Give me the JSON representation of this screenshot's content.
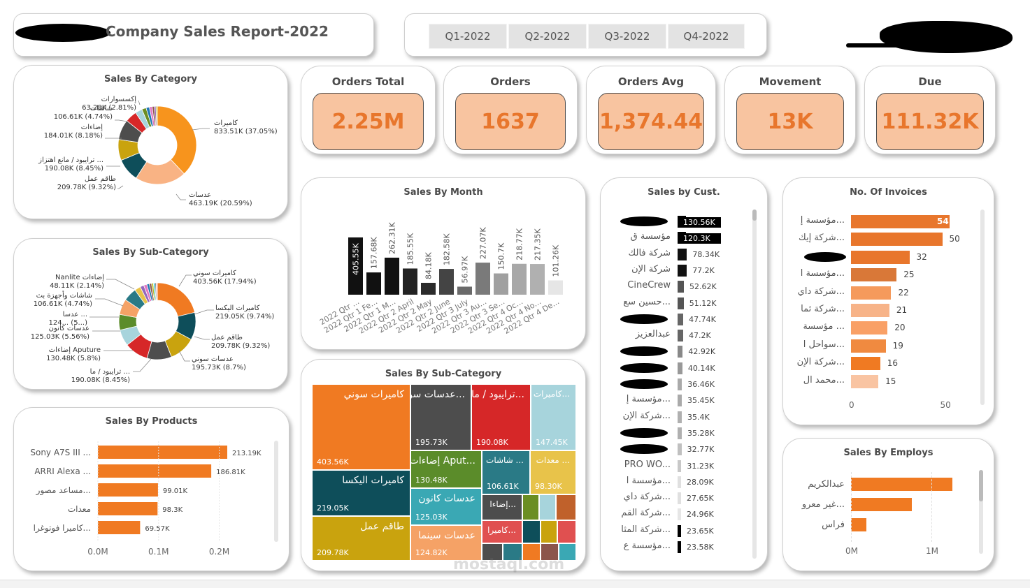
{
  "header": {
    "title": "Company Sales Report-2022",
    "quarters": [
      "Q1-2022",
      "Q2-2022",
      "Q3-2022",
      "Q4-2022"
    ]
  },
  "kpis": [
    {
      "title": "Orders Total",
      "value": "2.25M"
    },
    {
      "title": "Orders",
      "value": "1637"
    },
    {
      "title": "Orders Avg",
      "value": "1,374.44"
    },
    {
      "title": "Movement",
      "value": "13K"
    },
    {
      "title": "Due",
      "value": "111.32K"
    }
  ],
  "category_donut": {
    "title": "Sales By Category",
    "slices": [
      {
        "label": "كاميرات",
        "value": 833.51,
        "pct": "37.05%",
        "text": "833.51K (37.05%)",
        "color": "#f7941d"
      },
      {
        "label": "عدسات",
        "value": 463.19,
        "pct": "20.59%",
        "text": "463.19K (20.59%)",
        "color": "#f9b384"
      },
      {
        "label": "طاقم عمل",
        "value": 209.78,
        "pct": "9.32%",
        "text": "209.78K (9.32%)",
        "color": "#0e4e5a"
      },
      {
        "label": "ترايبود / مانع اهتزاز ...",
        "value": 190.08,
        "pct": "8.45%",
        "text": "190.08K (8.45%)",
        "color": "#c9a30e"
      },
      {
        "label": "إضاءات",
        "value": 184.01,
        "pct": "8.18%",
        "text": "184.01K (8.18%)",
        "color": "#4d4d4d"
      },
      {
        "label": "شاشات",
        "value": 106.61,
        "pct": "4.74%",
        "text": "106.61K (4.74%)",
        "color": "#d62728"
      },
      {
        "label": "إكسسوارات",
        "value": 63.28,
        "pct": "2.81%",
        "text": "63.28K (2.81%)",
        "color": "#a7d4dc"
      },
      {
        "label": "",
        "value": 40,
        "pct": "",
        "text": "",
        "color": "#6b8e23"
      },
      {
        "label": "",
        "value": 30,
        "pct": "",
        "text": "",
        "color": "#1f77b4"
      },
      {
        "label": "",
        "value": 25,
        "pct": "",
        "text": "",
        "color": "#e377c2"
      },
      {
        "label": "",
        "value": 20,
        "pct": "",
        "text": "",
        "color": "#8c564b"
      },
      {
        "label": "",
        "value": 15,
        "pct": "",
        "text": "",
        "color": "#9467bd"
      },
      {
        "label": "",
        "value": 12,
        "pct": "",
        "text": "",
        "color": "#bcbd22"
      }
    ]
  },
  "subcategory_donut": {
    "title": "Sales By Sub-Category",
    "slices": [
      {
        "label": "كاميرات سوني",
        "text": "403.56K (17.94%)",
        "value": 403.56,
        "color": "#f07a22"
      },
      {
        "label": "كاميرات اليكسا",
        "text": "219.05K (9.74%)",
        "value": 219.05,
        "color": "#0e4e5a"
      },
      {
        "label": "طاقم عمل",
        "text": "209.78K (9.32%)",
        "value": 209.78,
        "color": "#c9a30e"
      },
      {
        "label": "عدسات سوني",
        "text": "195.73K (8.7%)",
        "value": 195.73,
        "color": "#4d4d4d"
      },
      {
        "label": "ترايبود / ما ...",
        "text": "190.08K (8.45%)",
        "value": 190.08,
        "color": "#d62728"
      },
      {
        "label": "إضاءات Aputure",
        "text": "130.48K (5.8%)",
        "value": 130.48,
        "color": "#a7d4dc"
      },
      {
        "label": "عدسات كانون",
        "text": "125.03K (5.56%)",
        "value": 125.03,
        "color": "#5b8c2a"
      },
      {
        "label": "عدسا ...",
        "text": "124... (5...)",
        "value": 124.82,
        "color": "#f5a266"
      },
      {
        "label": "شاشات وأجهزة بث",
        "text": "106.61K (4.74%)",
        "value": 106.61,
        "color": "#2a7a86"
      },
      {
        "label": "Nanlite إضاءات",
        "text": "48.11K (2.14%)",
        "value": 48.11,
        "color": "#e8c34a"
      },
      {
        "label": "",
        "text": "",
        "value": 30,
        "color": "#9467bd"
      },
      {
        "label": "",
        "text": "",
        "value": 25,
        "color": "#e377c2"
      },
      {
        "label": "",
        "text": "",
        "value": 20,
        "color": "#1f77b4"
      },
      {
        "label": "",
        "text": "",
        "value": 18,
        "color": "#8c564b"
      },
      {
        "label": "",
        "text": "",
        "value": 15,
        "color": "#bcbd22"
      },
      {
        "label": "",
        "text": "",
        "value": 12,
        "color": "#17becf"
      },
      {
        "label": "",
        "text": "",
        "value": 10,
        "color": "#7f7f7f"
      },
      {
        "label": "",
        "text": "",
        "value": 9,
        "color": "#ff9896"
      }
    ]
  },
  "products_bar": {
    "title": "Sales By Products",
    "rows": [
      {
        "label": "Sony A7S III ...",
        "value": 213.19,
        "text": "213.19K"
      },
      {
        "label": "ARRI Alexa ...",
        "value": 186.81,
        "text": "186.81K"
      },
      {
        "label": "مساعد مصور...",
        "value": 99.01,
        "text": "99.01K"
      },
      {
        "label": "معدات",
        "value": 98.3,
        "text": "98.3K"
      },
      {
        "label": "كاميرا فوتوغرا...",
        "value": 69.57,
        "text": "69.57K"
      }
    ],
    "xticks": [
      "0.0M",
      "0.1M",
      "0.2M"
    ],
    "color": "#f07a22"
  },
  "month_chart": {
    "type": "bar",
    "title": "Sales By Month",
    "categories": [
      "2022 Qtr 1 January",
      "2022 Qtr 1 February",
      "2022 Qtr 1 March",
      "2022 Qtr 2 April",
      "2022 Qtr 2 May",
      "2022 Qtr 2 June",
      "2022 Qtr 3 July",
      "2022 Qtr 3 August",
      "2022 Qtr 3 September",
      "2022 Qtr 4 October",
      "2022 Qtr 4 November",
      "2022 Qtr 4 December"
    ],
    "short_labels": [
      "2022 Qtr ...",
      "2022 Qtr 1 Fe...",
      "2022 Qtr 1 M...",
      "2022 Qtr 2 April",
      "2022 Qtr 2 May",
      "2022 Qtr 2 June",
      "2022 Qtr 3 July",
      "2022 Qtr 3 Au...",
      "2022 Qtr 3 Se...",
      "2022 Qtr 4 Oc...",
      "2022 Qtr 4 No...",
      "2022 Qtr 4 De..."
    ],
    "values": [
      405.55,
      157.68,
      262.31,
      185.55,
      84.18,
      182.58,
      56.97,
      227.07,
      150.7,
      218.77,
      217.35,
      101.26
    ],
    "labels": [
      "405.55K",
      "157.68K",
      "262.31K",
      "185.55K",
      "84.18K",
      "182.58K",
      "56.97K",
      "227.07K",
      "150.7K",
      "218.77K",
      "217.35K",
      "101.26K"
    ],
    "colors": [
      "#111111",
      "#111111",
      "#111111",
      "#222222",
      "#2b2b2b",
      "#444444",
      "#6a6a6a",
      "#7a7a7a",
      "#a0a0a0",
      "#a8a8a8",
      "#b0b0b0",
      "#e6e6e6"
    ]
  },
  "treemap": {
    "title": "Sales By Sub-Category",
    "tiles": [
      {
        "label": "كاميرات سوني",
        "value": "403.56K",
        "color": "#f07a22"
      },
      {
        "label": "كاميرات اليكسا",
        "value": "219.05K",
        "color": "#0e4e5a"
      },
      {
        "label": "طاقم عمل",
        "value": "209.78K",
        "color": "#c9a30e"
      },
      {
        "label": "عدسات سو...",
        "value": "195.73K",
        "color": "#4d4d4d"
      },
      {
        "label": "ترايبود / ما...",
        "value": "190.08K",
        "color": "#d62728"
      },
      {
        "label": "كاميرات...",
        "value": "147.45K",
        "color": "#a7d4dc"
      },
      {
        "label": "إضاءات Aput...",
        "value": "130.48K",
        "color": "#5b8c2a"
      },
      {
        "label": "شاشات ...",
        "value": "106.61K",
        "color": "#2a7a86"
      },
      {
        "label": "معدات ...",
        "value": "98.30K",
        "color": "#e8c34a"
      },
      {
        "label": "عدسات كانون",
        "value": "125.03K",
        "color": "#3aa8b4"
      },
      {
        "label": "إضاءا...",
        "value": "",
        "color": "#4d4d4d"
      },
      {
        "label": "عدسات سينما",
        "value": "124.82K",
        "color": "#f5a266"
      },
      {
        "label": "كاميرا...",
        "value": "",
        "color": "#e05050"
      }
    ]
  },
  "customers": {
    "title": "Sales by Cust.",
    "rows": [
      {
        "label": "",
        "value": 130.56,
        "text": "130.56K",
        "color": "#000000",
        "redacted": true
      },
      {
        "label": "مؤسسة ق",
        "value": 120.3,
        "text": "120.3K",
        "color": "#000000"
      },
      {
        "label": "شركة فالك",
        "value": 78.34,
        "text": "78.34K",
        "color": "#111111"
      },
      {
        "label": "شركة الإن",
        "value": 77.2,
        "text": "77.2K",
        "color": "#111111"
      },
      {
        "label": "CineCrew",
        "value": 52.62,
        "text": "52.62K",
        "color": "#555555"
      },
      {
        "label": "حسين سع...",
        "value": 51.12,
        "text": "51.12K",
        "color": "#555555"
      },
      {
        "label": "",
        "value": 47.74,
        "text": "47.74K",
        "color": "#666666",
        "redacted": true
      },
      {
        "label": "عبدالعزيز",
        "value": 47.2,
        "text": "47.2K",
        "color": "#666666"
      },
      {
        "label": "",
        "value": 42.92,
        "text": "42.92K",
        "color": "#888888",
        "redacted": true
      },
      {
        "label": "",
        "value": 40.14,
        "text": "40.14K",
        "color": "#999999",
        "redacted": true
      },
      {
        "label": "",
        "value": 36.46,
        "text": "36.46K",
        "color": "#aaaaaa",
        "redacted": true
      },
      {
        "label": "مؤسسة إ...",
        "value": 35.45,
        "text": "35.45K",
        "color": "#aaaaaa"
      },
      {
        "label": "شركة الإن...",
        "value": 35.4,
        "text": "35.4K",
        "color": "#b0b0b0"
      },
      {
        "label": "",
        "value": 35.28,
        "text": "35.28K",
        "color": "#b0b0b0",
        "redacted": true
      },
      {
        "label": "",
        "value": 32.77,
        "text": "32.77K",
        "color": "#c0c0c0",
        "redacted": true
      },
      {
        "label": "PRO WO...",
        "value": 31.23,
        "text": "31.23K",
        "color": "#c8c8c8"
      },
      {
        "label": "مؤسسة ا...",
        "value": 28.09,
        "text": "28.09K",
        "color": "#e0e0e0"
      },
      {
        "label": "شركة داي...",
        "value": 27.65,
        "text": "27.65K",
        "color": "#e0e0e0"
      },
      {
        "label": "شركة القم...",
        "value": 24.96,
        "text": "24.96K",
        "color": "#e6e6e6"
      },
      {
        "label": "شركة المثا...",
        "value": 23.65,
        "text": "23.65K",
        "color": "#000000"
      },
      {
        "label": "مؤسسة ع...",
        "value": 23.58,
        "text": "23.58K",
        "color": "#000000"
      }
    ]
  },
  "invoices": {
    "title": "No. Of Invoices",
    "rows": [
      {
        "label": "مؤسسة إ...",
        "value": 54,
        "color": "#e8762c"
      },
      {
        "label": "شركة إيك...",
        "value": 50,
        "color": "#e8762c"
      },
      {
        "label": "",
        "value": 32,
        "color": "#e8762c",
        "redacted": true
      },
      {
        "label": "مؤسسة ا...",
        "value": 25,
        "color": "#d97838"
      },
      {
        "label": "شركة داي...",
        "value": 22,
        "color": "#f59a5c"
      },
      {
        "label": "شركة ثما...",
        "value": 21,
        "color": "#f7b388"
      },
      {
        "label": "مؤسسة ...",
        "value": 20,
        "color": "#f9a066"
      },
      {
        "label": "سواحل ا...",
        "value": 19,
        "color": "#f08a40"
      },
      {
        "label": "شركة الإن...",
        "value": 16,
        "color": "#f07a22"
      },
      {
        "label": "محمد ال...",
        "value": 15,
        "color": "#f9c4a2"
      }
    ],
    "xticks": [
      "0",
      "50"
    ]
  },
  "employs": {
    "title": "Sales By Employs",
    "rows": [
      {
        "label": "عبدالكريم",
        "value": 1.26
      },
      {
        "label": "غير معرو...",
        "value": 0.76
      },
      {
        "label": "فراس",
        "value": 0.19
      }
    ],
    "xticks": [
      "0M",
      "1M"
    ],
    "color": "#f07a22"
  },
  "watermark": "mostaql.com"
}
